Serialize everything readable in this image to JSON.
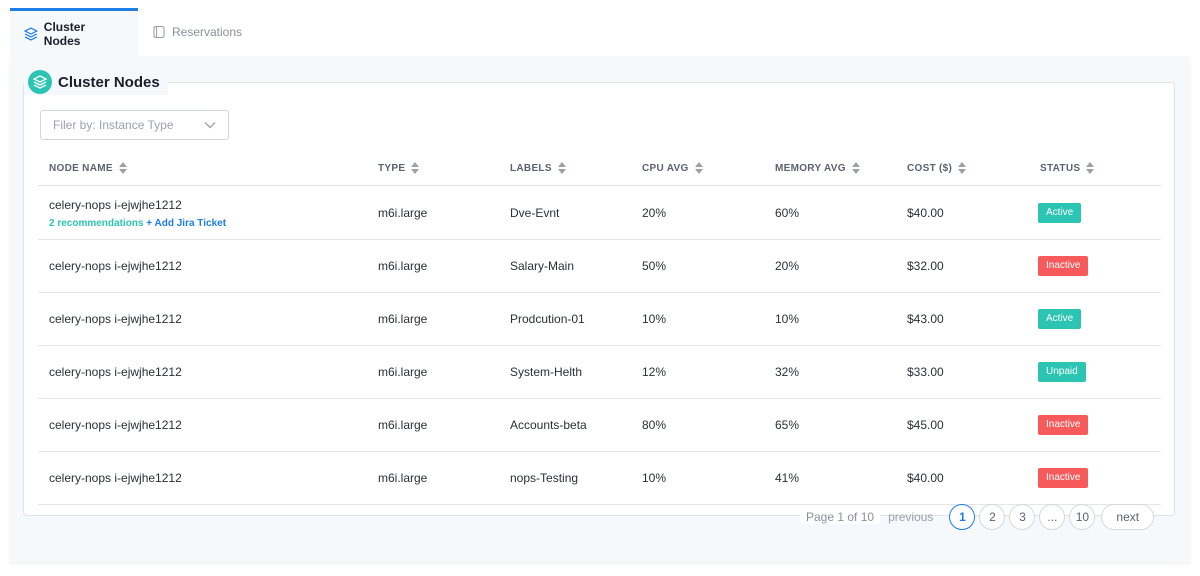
{
  "tabs": [
    {
      "label": "Cluster Nodes",
      "icon": "layers-icon",
      "active": true
    },
    {
      "label": "Reservations",
      "icon": "document-icon",
      "active": false
    }
  ],
  "panel": {
    "title": "Cluster Nodes"
  },
  "filter": {
    "placeholder": "Filer by: Instance Type"
  },
  "columns": [
    "NODE NAME",
    "TYPE",
    "LABELS",
    "CPU AVG",
    "MEMORY AVG",
    "COST ($)",
    "STATUS"
  ],
  "rows": [
    {
      "node": "celery-nops i-ejwjhe1212",
      "recommendations": "2 recommendations",
      "jira": "+ Add Jira Ticket",
      "type": "m6i.large",
      "label": "Dve-Evnt",
      "cpu": "20%",
      "memory": "60%",
      "cost": "$40.00",
      "status": "Active"
    },
    {
      "node": "celery-nops i-ejwjhe1212",
      "type": "m6i.large",
      "label": "Salary-Main",
      "cpu": "50%",
      "memory": "20%",
      "cost": "$32.00",
      "status": "Inactive"
    },
    {
      "node": "celery-nops i-ejwjhe1212",
      "type": "m6i.large",
      "label": "Prodcution-01",
      "cpu": "10%",
      "memory": "10%",
      "cost": "$43.00",
      "status": "Active"
    },
    {
      "node": "celery-nops i-ejwjhe1212",
      "type": "m6i.large",
      "label": "System-Helth",
      "cpu": "12%",
      "memory": "32%",
      "cost": "$33.00",
      "status": "Unpaid"
    },
    {
      "node": "celery-nops i-ejwjhe1212",
      "type": "m6i.large",
      "label": "Accounts-beta",
      "cpu": "80%",
      "memory": "65%",
      "cost": "$45.00",
      "status": "Inactive"
    },
    {
      "node": "celery-nops i-ejwjhe1212",
      "type": "m6i.large",
      "label": "nops-Testing",
      "cpu": "10%",
      "memory": "41%",
      "cost": "$40.00",
      "status": "Inactive"
    }
  ],
  "status_colors": {
    "Active": "#2cc4b3",
    "Inactive": "#f65a5b",
    "Unpaid": "#2cc4b3"
  },
  "pagination": {
    "info": "Page 1 of 10",
    "previous": "previous",
    "pages": [
      "1",
      "2",
      "3",
      "...",
      "10"
    ],
    "current": "1",
    "next": "next"
  }
}
